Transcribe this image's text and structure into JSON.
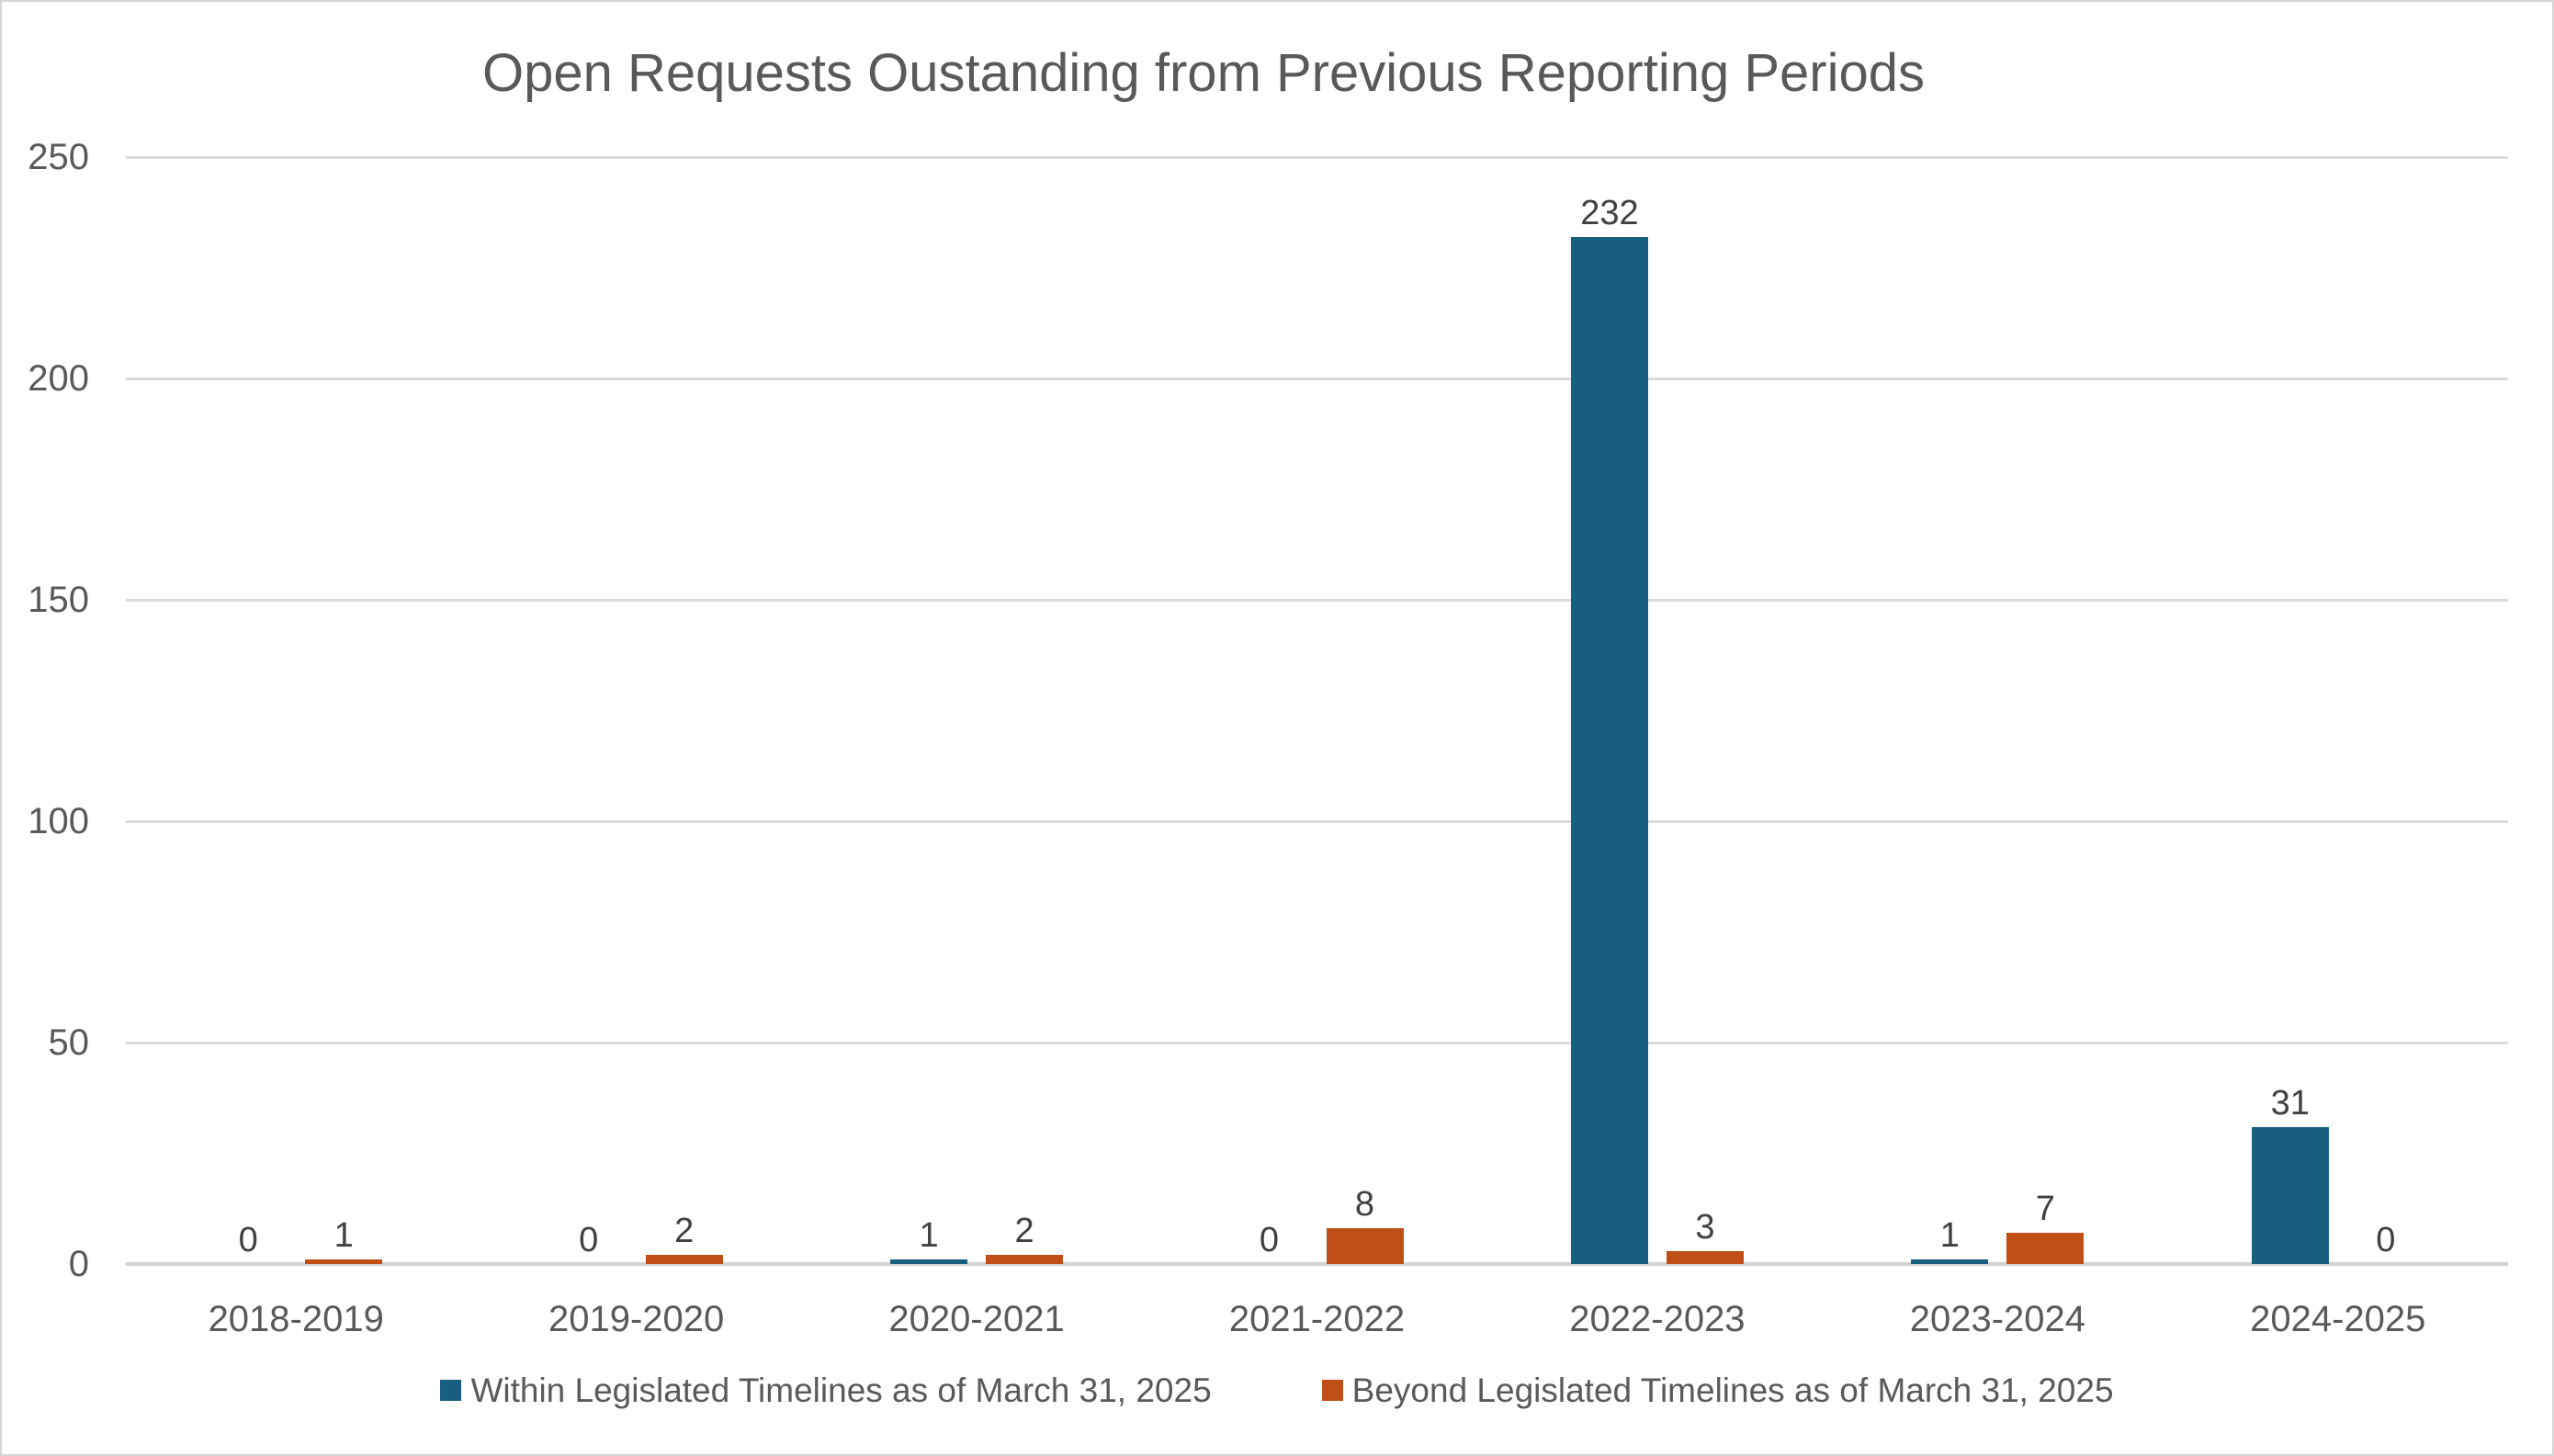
{
  "chart_data": {
    "type": "bar",
    "title": "Open Requests Oustanding from Previous Reporting Periods",
    "categories": [
      "2018-2019",
      "2019-2020",
      "2020-2021",
      "2021-2022",
      "2022-2023",
      "2023-2024",
      "2024-2025"
    ],
    "series": [
      {
        "name": "Within Legislated Timelines as of March 31, 2025",
        "color": "#175E80",
        "values": [
          0,
          0,
          1,
          0,
          232,
          1,
          31
        ]
      },
      {
        "name": "Beyond Legislated Timelines as of March 31, 2025",
        "color": "#C04F17",
        "values": [
          1,
          2,
          2,
          8,
          3,
          7,
          0
        ]
      }
    ],
    "ylim": [
      0,
      250
    ],
    "y_ticks": [
      0,
      50,
      100,
      150,
      200,
      250
    ],
    "grid": true,
    "data_labels": true,
    "legend_position": "bottom",
    "gridline_color": "#DADADA",
    "axis_line_color": "#D2D2D2",
    "title_color": "#595959",
    "axis_text_color": "#595959",
    "data_label_color": "#404040"
  }
}
